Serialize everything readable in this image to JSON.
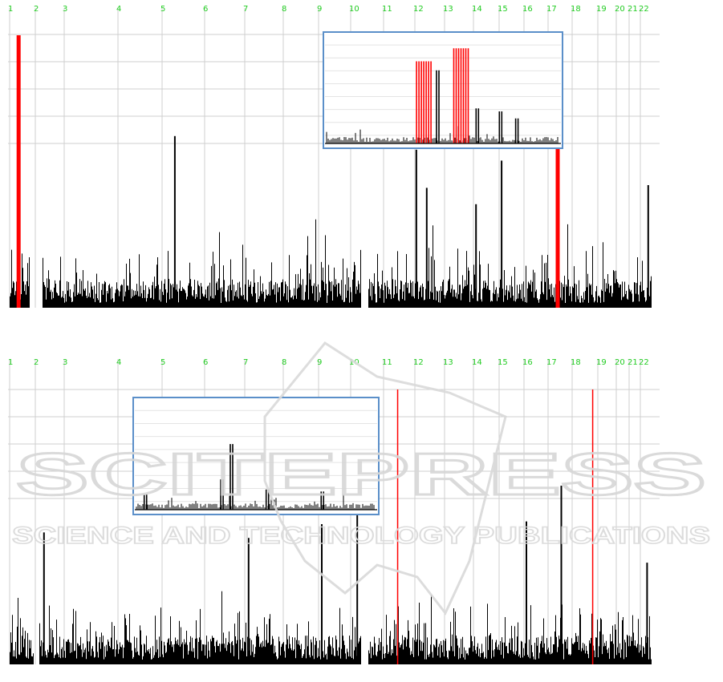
{
  "chart_data": [
    {
      "type": "bar",
      "chromosomes": [
        "1",
        "2",
        "3",
        "4",
        "5",
        "6",
        "7",
        "8",
        "9",
        "10",
        "11",
        "12",
        "13",
        "14",
        "15",
        "16",
        "17",
        "18",
        "19",
        "20",
        "21",
        "22"
      ],
      "colors": {
        "chromosome_label": "#22cc22",
        "bar": "#000000",
        "highlight": "#ff0000",
        "grid": "#cfcfcf",
        "inset_border": "#5b8fc9"
      },
      "peaks": [
        {
          "chromosome": "1",
          "position": 0.35,
          "level": 1.0,
          "color": "red"
        },
        {
          "chromosome": "5",
          "position": 0.3,
          "level": 0.63,
          "color": "black"
        },
        {
          "chromosome": "12",
          "position": 0.05,
          "level": 0.58,
          "color": "black"
        },
        {
          "chromosome": "12",
          "position": 0.4,
          "level": 0.44,
          "color": "black"
        },
        {
          "chromosome": "15",
          "position": 0.1,
          "level": 0.54,
          "color": "black"
        },
        {
          "chromosome": "14",
          "position": 0.1,
          "level": 0.38,
          "color": "black"
        },
        {
          "chromosome": "17",
          "position": 0.4,
          "level": 1.0,
          "color": "red"
        },
        {
          "chromosome": "22",
          "position": 0.7,
          "level": 0.45,
          "color": "black"
        }
      ],
      "inset": {
        "peaks": [
          {
            "position": 0.42,
            "level": 0.82,
            "color": "red"
          },
          {
            "position": 0.48,
            "level": 0.73,
            "color": "black"
          },
          {
            "position": 0.58,
            "level": 0.95,
            "color": "red"
          },
          {
            "position": 0.65,
            "level": 0.35,
            "color": "black"
          },
          {
            "position": 0.75,
            "level": 0.32,
            "color": "black"
          },
          {
            "position": 0.82,
            "level": 0.25,
            "color": "black"
          }
        ]
      }
    },
    {
      "type": "bar",
      "chromosomes": [
        "1",
        "2",
        "3",
        "4",
        "5",
        "6",
        "7",
        "8",
        "9",
        "10",
        "11",
        "12",
        "13",
        "14",
        "15",
        "16",
        "17",
        "18",
        "19",
        "20",
        "21",
        "22"
      ],
      "colors": {
        "chromosome_label": "#22cc22",
        "bar": "#000000",
        "highlight": "#ff0000",
        "grid": "#cfcfcf",
        "inset_border": "#5b8fc9"
      },
      "peaks": [
        {
          "chromosome": "2",
          "position": 0.3,
          "level": 0.48,
          "color": "black"
        },
        {
          "chromosome": "7",
          "position": 0.1,
          "level": 0.46,
          "color": "black"
        },
        {
          "chromosome": "9",
          "position": 0.1,
          "level": 0.51,
          "color": "black"
        },
        {
          "chromosome": "10",
          "position": 0.2,
          "level": 0.75,
          "color": "black"
        },
        {
          "chromosome": "11",
          "position": 0.45,
          "level": 1.0,
          "color": "red"
        },
        {
          "chromosome": "16",
          "position": 0.1,
          "level": 0.52,
          "color": "black"
        },
        {
          "chromosome": "17",
          "position": 0.55,
          "level": 0.65,
          "color": "black"
        },
        {
          "chromosome": "18",
          "position": 0.8,
          "level": 1.0,
          "color": "red"
        },
        {
          "chromosome": "22",
          "position": 0.6,
          "level": 0.37,
          "color": "black"
        }
      ],
      "inset": {
        "peaks": [
          {
            "position": 0.04,
            "level": 0.15,
            "color": "black"
          },
          {
            "position": 0.36,
            "level": 0.3,
            "color": "black"
          },
          {
            "position": 0.4,
            "level": 0.65,
            "color": "black"
          },
          {
            "position": 0.55,
            "level": 0.2,
            "color": "black"
          },
          {
            "position": 0.78,
            "level": 0.18,
            "color": "black"
          }
        ]
      }
    }
  ],
  "watermark": {
    "line1": "SCITEPRESS",
    "line2": "SCIENCE AND TECHNOLOGY PUBLICATIONS"
  }
}
